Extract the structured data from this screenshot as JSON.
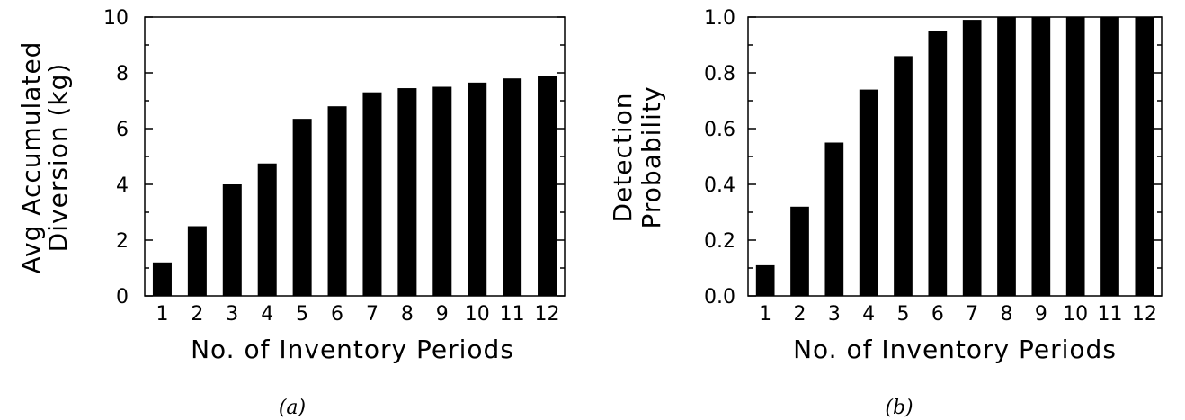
{
  "chart_data": [
    {
      "type": "bar",
      "title": "",
      "caption": "(a)",
      "xlabel": "No. of Inventory Periods",
      "ylabel": [
        "Avg Accumulated",
        "Diversion (kg)"
      ],
      "categories": [
        "1",
        "2",
        "3",
        "4",
        "5",
        "6",
        "7",
        "8",
        "9",
        "10",
        "11",
        "12"
      ],
      "values": [
        1.2,
        2.5,
        4.0,
        4.75,
        6.35,
        6.8,
        7.3,
        7.45,
        7.5,
        7.65,
        7.8,
        7.9
      ],
      "ylim": [
        0,
        10
      ],
      "yticks": [
        "0",
        "2",
        "4",
        "6",
        "8",
        "10"
      ],
      "bar_color": "#000000",
      "grid": false,
      "legend": "none"
    },
    {
      "type": "bar",
      "title": "",
      "caption": "(b)",
      "xlabel": "No. of Inventory Periods",
      "ylabel": [
        "Detection",
        "Probability"
      ],
      "categories": [
        "1",
        "2",
        "3",
        "4",
        "5",
        "6",
        "7",
        "8",
        "9",
        "10",
        "11",
        "12"
      ],
      "values": [
        0.11,
        0.32,
        0.55,
        0.74,
        0.86,
        0.95,
        0.99,
        1.0,
        1.0,
        1.0,
        1.0,
        1.0
      ],
      "ylim": [
        0,
        1
      ],
      "yticks": [
        "0.0",
        "0.2",
        "0.4",
        "0.6",
        "0.8",
        "1.0"
      ],
      "bar_color": "#000000",
      "grid": false,
      "legend": "none"
    }
  ]
}
